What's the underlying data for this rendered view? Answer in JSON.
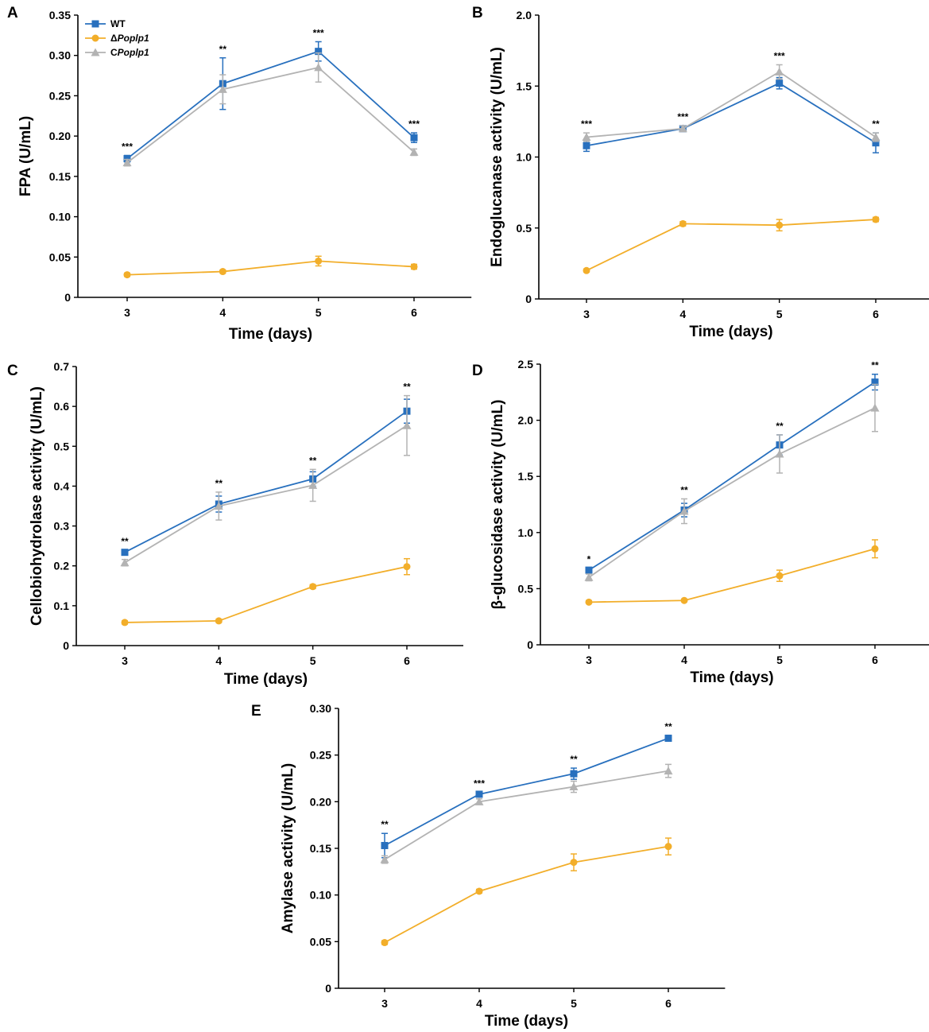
{
  "figure": {
    "legend": {
      "entries": [
        {
          "prefix": "WT",
          "italic": "",
          "color": "#2870BE",
          "marker": "square"
        },
        {
          "prefix": "Δ",
          "italic": "Poplp1",
          "color": "#F2AE2A",
          "marker": "circle"
        },
        {
          "prefix": "C",
          "italic": "Poplp1",
          "color": "#B3B3B3",
          "marker": "triangle"
        }
      ]
    },
    "colors": {
      "wt": "#2870BE",
      "delta": "#F2AE2A",
      "comp": "#B3B3B3",
      "axis": "#000000"
    }
  },
  "chart_data": [
    {
      "panel": "A",
      "type": "line",
      "title": "",
      "xlabel": "Time (days)",
      "ylabel": "FPA (U/mL)",
      "categories": [
        "3",
        "4",
        "5",
        "6"
      ],
      "ylim": [
        0,
        0.35
      ],
      "yticks": [
        "0",
        "0.05",
        "0.10",
        "0.15",
        "0.20",
        "0.25",
        "0.30",
        "0.35"
      ],
      "significance": [
        "***",
        "**",
        "***",
        "***"
      ],
      "series": [
        {
          "name": "WT",
          "values": [
            0.172,
            0.265,
            0.305,
            0.198
          ],
          "errors": [
            0.004,
            0.032,
            0.012,
            0.006
          ]
        },
        {
          "name": "ΔPoplp1",
          "values": [
            0.028,
            0.032,
            0.045,
            0.038
          ],
          "errors": [
            0.002,
            0.002,
            0.006,
            0.003
          ]
        },
        {
          "name": "CPoplp1",
          "values": [
            0.167,
            0.258,
            0.285,
            0.18
          ],
          "errors": [
            0.004,
            0.018,
            0.018,
            0.004
          ]
        }
      ]
    },
    {
      "panel": "B",
      "type": "line",
      "title": "",
      "xlabel": "Time (days)",
      "ylabel": "Endoglucanase activity (U/mL)",
      "categories": [
        "3",
        "4",
        "5",
        "6"
      ],
      "ylim": [
        0,
        2.0
      ],
      "yticks": [
        "0",
        "0.5",
        "1.0",
        "1.5",
        "2.0"
      ],
      "significance": [
        "***",
        "***",
        "***",
        "**"
      ],
      "series": [
        {
          "name": "WT",
          "values": [
            1.08,
            1.2,
            1.52,
            1.1
          ],
          "errors": [
            0.04,
            0.02,
            0.04,
            0.07
          ]
        },
        {
          "name": "ΔPoplp1",
          "values": [
            0.2,
            0.53,
            0.52,
            0.56
          ],
          "errors": [
            0.01,
            0.015,
            0.04,
            0.015
          ]
        },
        {
          "name": "CPoplp1",
          "values": [
            1.14,
            1.2,
            1.6,
            1.14
          ],
          "errors": [
            0.03,
            0.02,
            0.05,
            0.03
          ]
        }
      ]
    },
    {
      "panel": "C",
      "type": "line",
      "title": "",
      "xlabel": "Time (days)",
      "ylabel": "Cellobiohydrolase activity (U/mL)",
      "categories": [
        "3",
        "4",
        "5",
        "6"
      ],
      "ylim": [
        0,
        0.7
      ],
      "yticks": [
        "0",
        "0.1",
        "0.2",
        "0.3",
        "0.4",
        "0.5",
        "0.6",
        "0.7"
      ],
      "significance": [
        "**",
        "**",
        "**",
        "**"
      ],
      "series": [
        {
          "name": "WT",
          "values": [
            0.234,
            0.355,
            0.418,
            0.588
          ],
          "errors": [
            0.005,
            0.02,
            0.018,
            0.03
          ]
        },
        {
          "name": "ΔPoplp1",
          "values": [
            0.058,
            0.062,
            0.148,
            0.198
          ],
          "errors": [
            0.004,
            0.004,
            0.005,
            0.02
          ]
        },
        {
          "name": "CPoplp1",
          "values": [
            0.208,
            0.35,
            0.402,
            0.552
          ],
          "errors": [
            0.008,
            0.035,
            0.04,
            0.075
          ]
        }
      ]
    },
    {
      "panel": "D",
      "type": "line",
      "title": "",
      "xlabel": "Time (days)",
      "ylabel": "β-glucosidase activity (U/mL)",
      "categories": [
        "3",
        "4",
        "5",
        "6"
      ],
      "ylim": [
        0,
        2.5
      ],
      "yticks": [
        "0",
        "0.5",
        "1.0",
        "1.5",
        "2.0",
        "2.5"
      ],
      "significance": [
        "*",
        "**",
        "**",
        "**"
      ],
      "series": [
        {
          "name": "WT",
          "values": [
            0.665,
            1.2,
            1.78,
            2.34
          ],
          "errors": [
            0.02,
            0.06,
            0.09,
            0.07
          ]
        },
        {
          "name": "ΔPoplp1",
          "values": [
            0.38,
            0.395,
            0.615,
            0.855
          ],
          "errors": [
            0.01,
            0.01,
            0.05,
            0.08
          ]
        },
        {
          "name": "CPoplp1",
          "values": [
            0.6,
            1.19,
            1.7,
            2.11
          ],
          "errors": [
            0.03,
            0.11,
            0.17,
            0.21
          ]
        }
      ]
    },
    {
      "panel": "E",
      "type": "line",
      "title": "",
      "xlabel": "Time (days)",
      "ylabel": "Amylase activity (U/mL)",
      "categories": [
        "3",
        "4",
        "5",
        "6"
      ],
      "ylim": [
        0,
        0.3
      ],
      "yticks": [
        "0",
        "0.05",
        "0.10",
        "0.15",
        "0.20",
        "0.25",
        "0.30"
      ],
      "significance": [
        "**",
        "***",
        "**",
        "**"
      ],
      "series": [
        {
          "name": "WT",
          "values": [
            0.153,
            0.208,
            0.23,
            0.268
          ],
          "errors": [
            0.013,
            0.002,
            0.006,
            0.003
          ]
        },
        {
          "name": "ΔPoplp1",
          "values": [
            0.049,
            0.104,
            0.135,
            0.152
          ],
          "errors": [
            0.002,
            0.002,
            0.009,
            0.009
          ]
        },
        {
          "name": "CPoplp1",
          "values": [
            0.138,
            0.2,
            0.216,
            0.233
          ],
          "errors": [
            0.004,
            0.003,
            0.006,
            0.007
          ]
        }
      ]
    }
  ]
}
